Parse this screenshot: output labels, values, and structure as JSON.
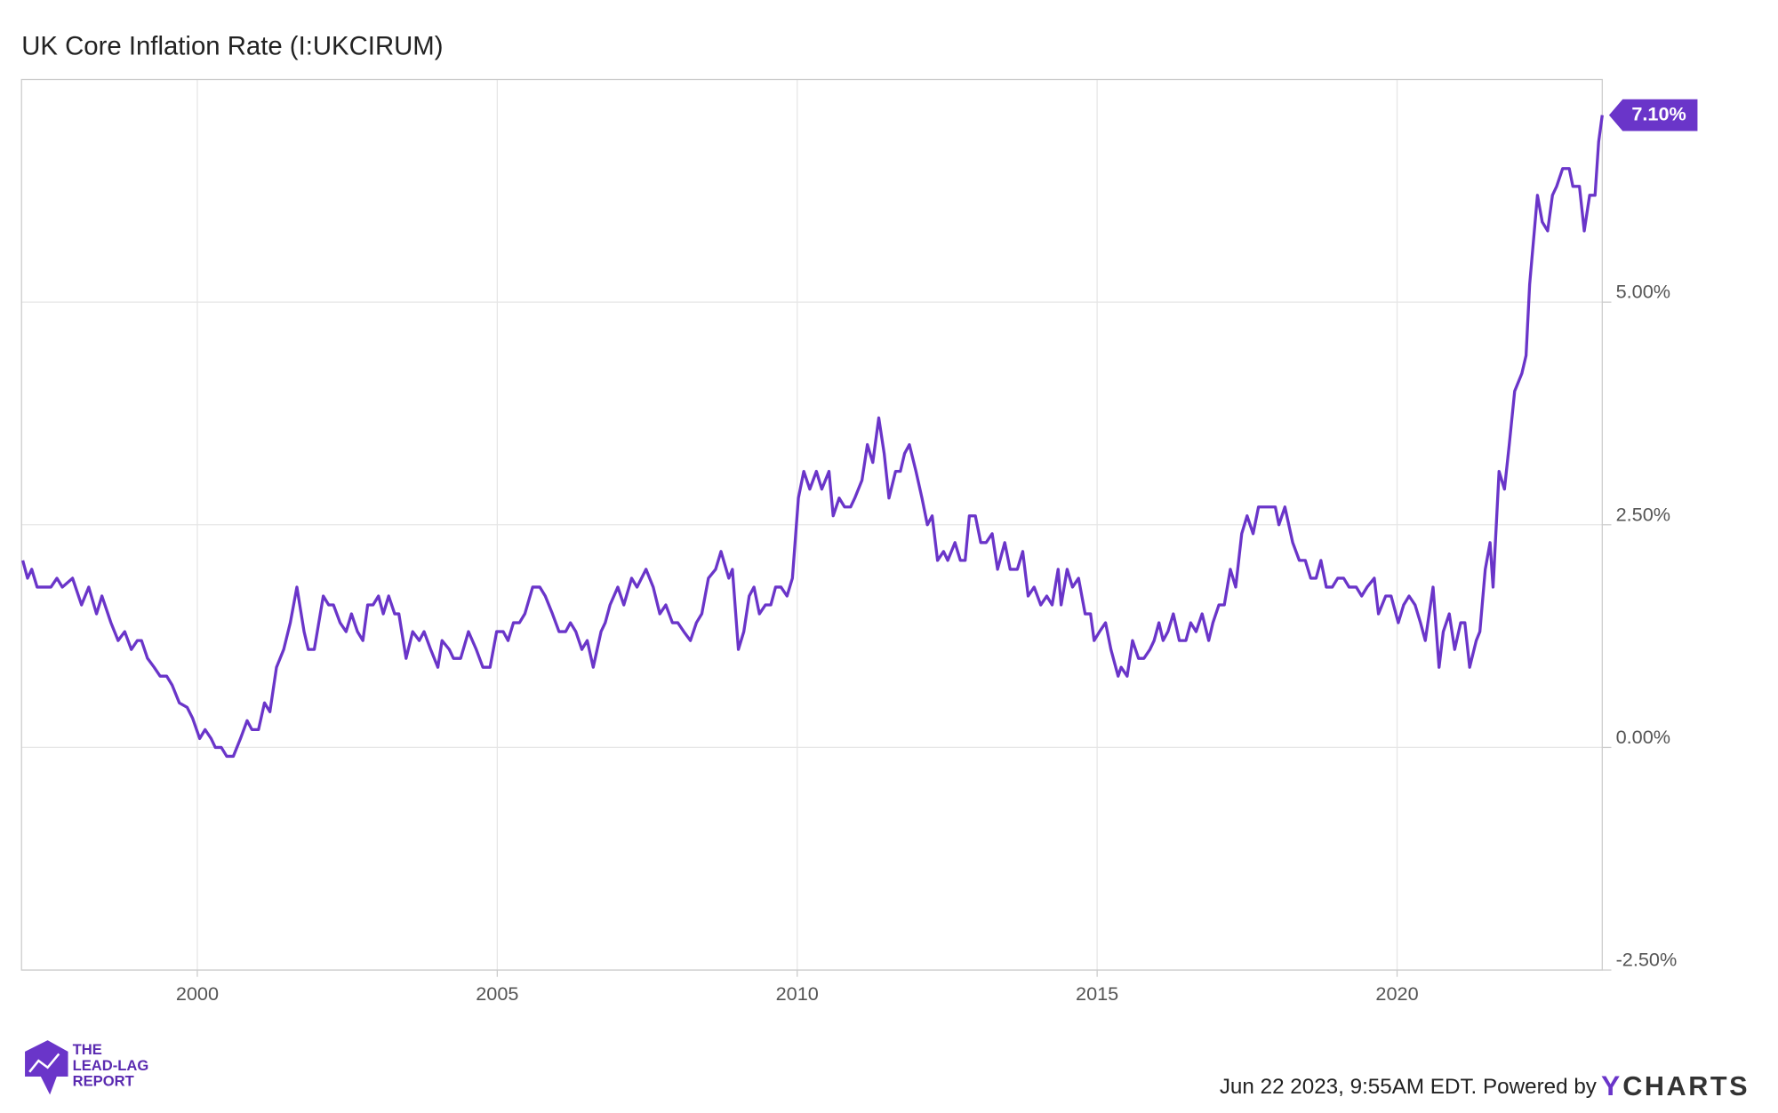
{
  "chart_data": {
    "type": "line",
    "title": "UK Core Inflation Rate (I:UKCIRUM)",
    "xlim": [
      1997.07,
      2023.42
    ],
    "xticks": [
      2000,
      2005,
      2010,
      2015,
      2020
    ],
    "ylim": [
      -2.5,
      7.5
    ],
    "yticks": [
      {
        "value": -2.5,
        "label": "-2.50%"
      },
      {
        "value": 0,
        "label": "0.00%"
      },
      {
        "value": 2.5,
        "label": "2.50%"
      },
      {
        "value": 5,
        "label": "5.00%"
      }
    ],
    "grid": true,
    "series": [
      {
        "name": "UK Core Inflation Rate",
        "color": "#6a35c9",
        "end_label": "7.10%",
        "x": [
          1997.09,
          1997.17,
          1997.24,
          1997.33,
          1997.56,
          1997.66,
          1997.75,
          1997.92,
          1998.07,
          1998.19,
          1998.32,
          1998.41,
          1998.56,
          1998.68,
          1998.79,
          1998.9,
          1999.0,
          1999.07,
          1999.17,
          1999.28,
          1999.38,
          1999.49,
          1999.58,
          1999.7,
          1999.83,
          1999.92,
          2000.04,
          2000.13,
          2000.23,
          2000.3,
          2000.4,
          2000.49,
          2000.6,
          2000.72,
          2000.83,
          2000.91,
          2001.02,
          2001.12,
          2001.21,
          2001.32,
          2001.44,
          2001.55,
          2001.66,
          2001.78,
          2001.85,
          2001.95,
          2002.1,
          2002.19,
          2002.27,
          2002.38,
          2002.48,
          2002.57,
          2002.67,
          2002.76,
          2002.84,
          2002.93,
          2003.02,
          2003.1,
          2003.19,
          2003.29,
          2003.36,
          2003.48,
          2003.59,
          2003.7,
          2003.78,
          2003.89,
          2004.01,
          2004.08,
          2004.2,
          2004.27,
          2004.39,
          2004.52,
          2004.65,
          2004.76,
          2004.88,
          2004.99,
          2005.1,
          2005.18,
          2005.27,
          2005.37,
          2005.46,
          2005.59,
          2005.71,
          2005.8,
          2005.92,
          2006.03,
          2006.14,
          2006.22,
          2006.31,
          2006.41,
          2006.5,
          2006.6,
          2006.73,
          2006.8,
          2006.88,
          2007.01,
          2007.11,
          2007.24,
          2007.33,
          2007.48,
          2007.6,
          2007.71,
          2007.81,
          2007.92,
          2008.01,
          2008.11,
          2008.22,
          2008.32,
          2008.41,
          2008.52,
          2008.64,
          2008.73,
          2008.86,
          2008.92,
          2009.02,
          2009.11,
          2009.2,
          2009.28,
          2009.37,
          2009.47,
          2009.56,
          2009.64,
          2009.73,
          2009.83,
          2009.92,
          2010.02,
          2010.11,
          2010.21,
          2010.32,
          2010.41,
          2010.53,
          2010.6,
          2010.7,
          2010.79,
          2010.89,
          2010.96,
          2011.08,
          2011.17,
          2011.26,
          2011.36,
          2011.45,
          2011.53,
          2011.64,
          2011.72,
          2011.79,
          2011.87,
          2011.98,
          2012.08,
          2012.17,
          2012.25,
          2012.34,
          2012.44,
          2012.51,
          2012.63,
          2012.72,
          2012.8,
          2012.87,
          2012.97,
          2013.06,
          2013.15,
          2013.25,
          2013.34,
          2013.46,
          2013.55,
          2013.67,
          2013.76,
          2013.85,
          2013.95,
          2014.06,
          2014.16,
          2014.25,
          2014.35,
          2014.4,
          2014.5,
          2014.59,
          2014.69,
          2014.8,
          2014.89,
          2014.95,
          2015.04,
          2015.14,
          2015.23,
          2015.35,
          2015.4,
          2015.5,
          2015.59,
          2015.69,
          2015.78,
          2015.88,
          2015.95,
          2016.03,
          2016.1,
          2016.18,
          2016.27,
          2016.37,
          2016.48,
          2016.56,
          2016.65,
          2016.75,
          2016.86,
          2016.93,
          2017.03,
          2017.12,
          2017.22,
          2017.31,
          2017.41,
          2017.5,
          2017.6,
          2017.69,
          2017.79,
          2017.88,
          2017.97,
          2018.03,
          2018.13,
          2018.26,
          2018.37,
          2018.47,
          2018.56,
          2018.65,
          2018.73,
          2018.82,
          2018.92,
          2019.01,
          2019.11,
          2019.2,
          2019.32,
          2019.41,
          2019.5,
          2019.62,
          2019.69,
          2019.81,
          2019.9,
          2020.02,
          2020.11,
          2020.2,
          2020.3,
          2020.39,
          2020.47,
          2020.6,
          2020.7,
          2020.77,
          2020.87,
          2020.96,
          2021.06,
          2021.13,
          2021.21,
          2021.32,
          2021.38,
          2021.47,
          2021.55,
          2021.6,
          2021.7,
          2021.79,
          2021.87,
          2021.96,
          2022.08,
          2022.15,
          2022.21,
          2022.34,
          2022.42,
          2022.51,
          2022.59,
          2022.66,
          2022.76,
          2022.87,
          2022.93,
          2023.04,
          2023.12,
          2023.21,
          2023.3,
          2023.36,
          2023.42
        ],
        "values": [
          2.1,
          1.9,
          2.0,
          1.8,
          1.8,
          1.9,
          1.8,
          1.9,
          1.6,
          1.8,
          1.5,
          1.7,
          1.4,
          1.2,
          1.3,
          1.1,
          1.2,
          1.2,
          1.0,
          0.9,
          0.8,
          0.8,
          0.7,
          0.5,
          0.45,
          0.33,
          0.1,
          0.2,
          0.1,
          0.0,
          0.0,
          -0.1,
          -0.1,
          0.1,
          0.3,
          0.2,
          0.2,
          0.5,
          0.4,
          0.9,
          1.1,
          1.4,
          1.8,
          1.3,
          1.1,
          1.1,
          1.7,
          1.6,
          1.6,
          1.4,
          1.3,
          1.5,
          1.3,
          1.2,
          1.6,
          1.6,
          1.7,
          1.5,
          1.7,
          1.5,
          1.5,
          1.0,
          1.3,
          1.2,
          1.3,
          1.1,
          0.9,
          1.2,
          1.1,
          1.0,
          1.0,
          1.3,
          1.1,
          0.9,
          0.9,
          1.3,
          1.3,
          1.2,
          1.4,
          1.4,
          1.5,
          1.8,
          1.8,
          1.7,
          1.5,
          1.3,
          1.3,
          1.4,
          1.3,
          1.1,
          1.2,
          0.9,
          1.3,
          1.4,
          1.6,
          1.8,
          1.6,
          1.9,
          1.8,
          2.0,
          1.8,
          1.5,
          1.6,
          1.4,
          1.4,
          1.3,
          1.2,
          1.4,
          1.5,
          1.9,
          2.0,
          2.2,
          1.9,
          2.0,
          1.1,
          1.3,
          1.7,
          1.8,
          1.5,
          1.6,
          1.6,
          1.8,
          1.8,
          1.7,
          1.9,
          2.8,
          3.1,
          2.9,
          3.1,
          2.9,
          3.1,
          2.6,
          2.8,
          2.7,
          2.7,
          2.8,
          3.0,
          3.4,
          3.2,
          3.7,
          3.3,
          2.8,
          3.1,
          3.1,
          3.3,
          3.4,
          3.1,
          2.8,
          2.5,
          2.6,
          2.1,
          2.2,
          2.1,
          2.3,
          2.1,
          2.1,
          2.6,
          2.6,
          2.3,
          2.3,
          2.4,
          2.0,
          2.3,
          2.0,
          2.0,
          2.2,
          1.7,
          1.8,
          1.6,
          1.7,
          1.6,
          2.0,
          1.6,
          2.0,
          1.8,
          1.9,
          1.5,
          1.5,
          1.2,
          1.3,
          1.4,
          1.1,
          0.8,
          0.9,
          0.8,
          1.2,
          1.0,
          1.0,
          1.1,
          1.2,
          1.4,
          1.2,
          1.3,
          1.5,
          1.2,
          1.2,
          1.4,
          1.3,
          1.5,
          1.2,
          1.4,
          1.6,
          1.6,
          2.0,
          1.8,
          2.4,
          2.6,
          2.4,
          2.7,
          2.7,
          2.7,
          2.7,
          2.5,
          2.7,
          2.3,
          2.1,
          2.1,
          1.9,
          1.9,
          2.1,
          1.8,
          1.8,
          1.9,
          1.9,
          1.8,
          1.8,
          1.7,
          1.8,
          1.9,
          1.5,
          1.7,
          1.7,
          1.4,
          1.6,
          1.7,
          1.6,
          1.4,
          1.2,
          1.8,
          0.9,
          1.3,
          1.5,
          1.1,
          1.4,
          1.4,
          0.9,
          1.2,
          1.3,
          2.0,
          2.3,
          1.8,
          3.1,
          2.9,
          3.4,
          4.0,
          4.2,
          4.4,
          5.2,
          6.2,
          5.9,
          5.8,
          6.2,
          6.3,
          6.5,
          6.5,
          6.3,
          6.3,
          5.8,
          6.2,
          6.2,
          6.8,
          7.1
        ]
      }
    ],
    "footer": "Jun 22 2023, 9:55AM EDT. Powered by",
    "brand": {
      "prefix": "Y",
      "rest": "CHARTS"
    },
    "logo": [
      "THE",
      "LEAD-LAG",
      "REPORT"
    ]
  }
}
